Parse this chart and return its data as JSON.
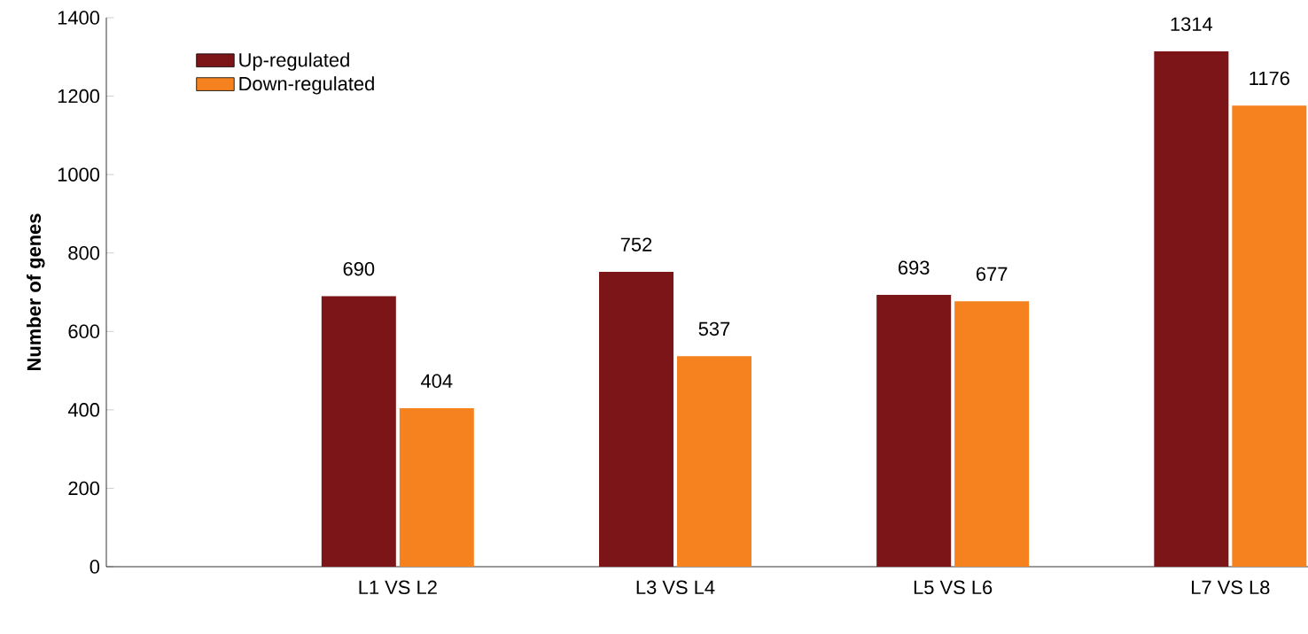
{
  "chart_data": {
    "type": "bar",
    "ylabel": "Number of genes",
    "categories": [
      "L1 VS L2",
      "L3 VS L4",
      "L5 VS L6",
      "L7 VS L8"
    ],
    "series": [
      {
        "name": "Up-regulated",
        "color": "#7b1518",
        "values": [
          690,
          752,
          693,
          1314
        ]
      },
      {
        "name": "Down-regulated",
        "color": "#f5821f",
        "values": [
          404,
          537,
          677,
          1176
        ]
      }
    ],
    "ylim": [
      0,
      1400
    ],
    "yticks": [
      0,
      200,
      400,
      600,
      800,
      1000,
      1200,
      1400
    ],
    "data_labels": true,
    "legend": "top left",
    "grid": false
  }
}
